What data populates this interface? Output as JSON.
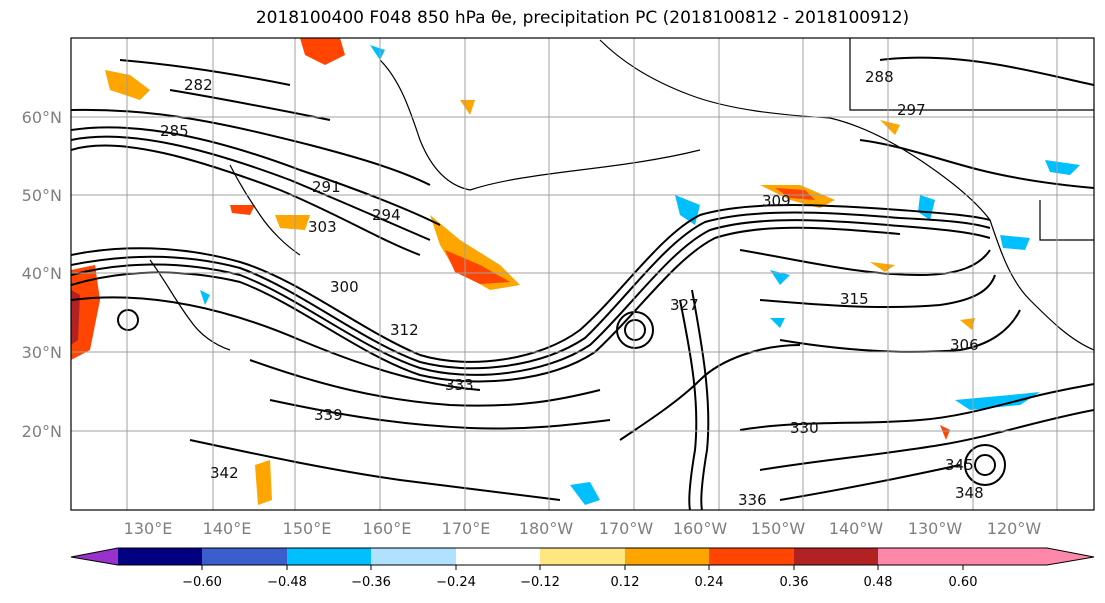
{
  "title": "2018100400 F048 850 hPa θe, precipitation PC (2018100812 - 2018100912)",
  "lat_labels": [
    "60°N",
    "50°N",
    "40°N",
    "30°N",
    "20°N"
  ],
  "lon_labels": [
    "130°E",
    "140°E",
    "150°E",
    "160°E",
    "170°E",
    "180°W",
    "170°W",
    "160°W",
    "150°W",
    "140°W",
    "130°W",
    "120°W"
  ],
  "contour_labels": [
    "282",
    "285",
    "288",
    "291",
    "294",
    "297",
    "300",
    "303",
    "306",
    "309",
    "312",
    "315",
    "327",
    "330",
    "333",
    "336",
    "339",
    "342",
    "345",
    "348"
  ],
  "colorbar": {
    "ticks": [
      "−0.60",
      "−0.48",
      "−0.36",
      "−0.24",
      "−0.12",
      "0.12",
      "0.24",
      "0.36",
      "0.48",
      "0.60"
    ],
    "colors": [
      "#9932cc",
      "#000080",
      "#3a5fcd",
      "#00bfff",
      "#b0e2ff",
      "#ffffff",
      "#ffe680",
      "#ffa500",
      "#ff4500",
      "#b22222",
      "#ff88aa"
    ]
  }
}
